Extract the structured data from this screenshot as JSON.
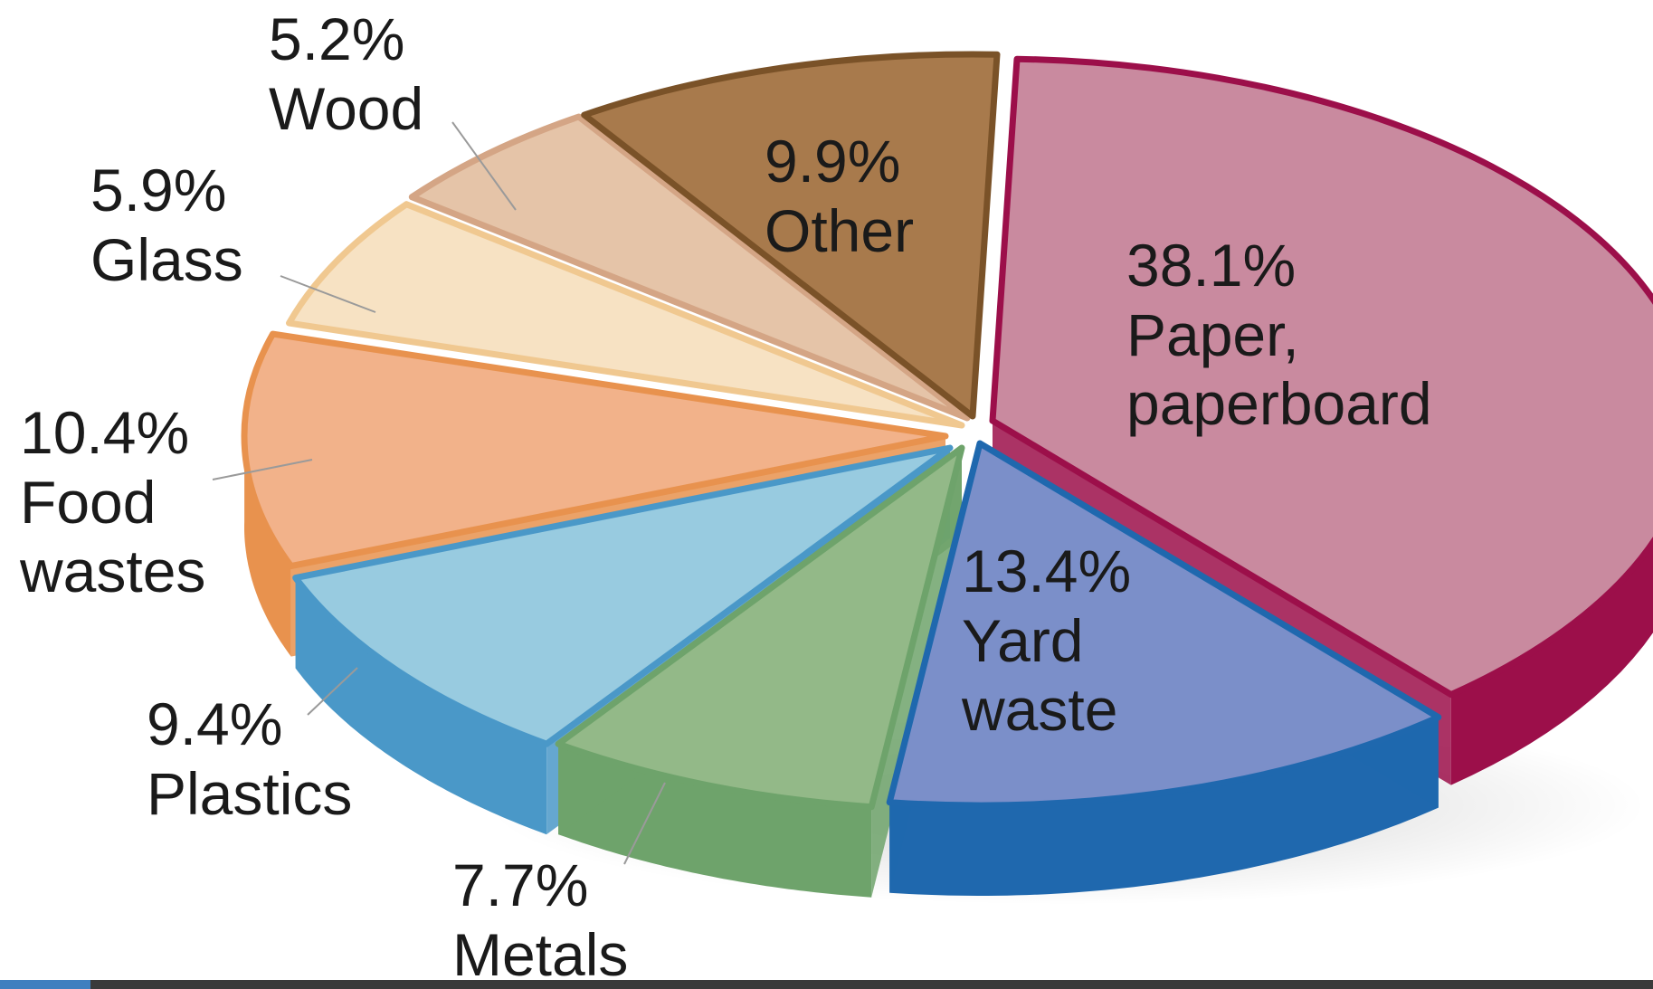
{
  "chart_data": {
    "type": "pie",
    "title": "",
    "categories": [
      "Paper, paperboard",
      "Yard waste",
      "Metals",
      "Plastics",
      "Food wastes",
      "Glass",
      "Wood",
      "Other"
    ],
    "values": [
      38.1,
      13.4,
      7.7,
      9.4,
      10.4,
      5.9,
      5.2,
      9.9
    ],
    "unit": "%",
    "colors": [
      "#c98a9f",
      "#7b8fc9",
      "#93b988",
      "#98cbe0",
      "#f2b28a",
      "#f7e2c3",
      "#e5c4a8",
      "#a87a4c"
    ],
    "side_colors": [
      "#9c0f4a",
      "#1f68ae",
      "#6ea36b",
      "#4a98c8",
      "#e8924e",
      "#f0c890",
      "#d4a585",
      "#7a5228"
    ],
    "labels": [
      {
        "percent": "38.1%",
        "name_lines": [
          "Paper,",
          "paperboard"
        ]
      },
      {
        "percent": "13.4%",
        "name_lines": [
          "Yard",
          "waste"
        ]
      },
      {
        "percent": "7.7%",
        "name_lines": [
          "Metals"
        ]
      },
      {
        "percent": "9.4%",
        "name_lines": [
          "Plastics"
        ]
      },
      {
        "percent": "10.4%",
        "name_lines": [
          "Food",
          "wastes"
        ]
      },
      {
        "percent": "5.9%",
        "name_lines": [
          "Glass"
        ]
      },
      {
        "percent": "5.2%",
        "name_lines": [
          "Wood"
        ]
      },
      {
        "percent": "9.9%",
        "name_lines": [
          "Other"
        ]
      }
    ]
  }
}
